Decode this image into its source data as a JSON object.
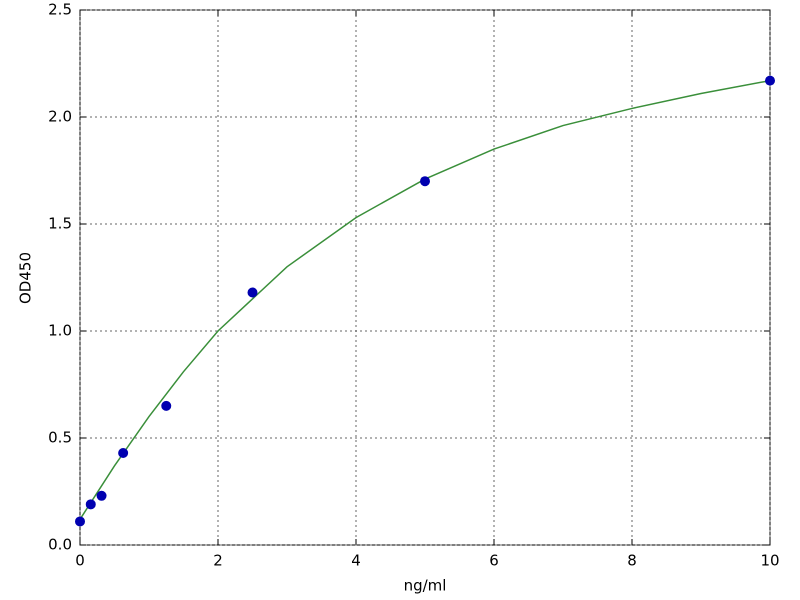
{
  "chart_data": {
    "type": "scatter",
    "xlabel": "ng/ml",
    "ylabel": "OD450",
    "xlim": [
      0,
      10
    ],
    "xticks": [
      0,
      2,
      4,
      6,
      8,
      10
    ],
    "ylim": [
      0,
      2.5
    ],
    "yticks": [
      {
        "value": 0,
        "label": "0.0"
      },
      0.5,
      {
        "value": 1,
        "label": "1.0"
      },
      1.5,
      {
        "value": 2,
        "label": "2.0"
      },
      2.5
    ],
    "grid": true,
    "series": [
      {
        "type": "line",
        "color": "#3a8f3a",
        "x": [
          0,
          0.5,
          1,
          1.5,
          2,
          3,
          4,
          5,
          6,
          7,
          8,
          9,
          10
        ],
        "values": [
          0.12,
          0.37,
          0.6,
          0.81,
          1.0,
          1.3,
          1.53,
          1.71,
          1.85,
          1.96,
          2.04,
          2.11,
          2.17
        ]
      },
      {
        "type": "scatter",
        "color": "#0000b0",
        "x": [
          0,
          0.156,
          0.3125,
          0.625,
          1.25,
          2.5,
          5,
          10
        ],
        "values": [
          0.11,
          0.19,
          0.23,
          0.43,
          0.65,
          1.18,
          1.7,
          2.17
        ]
      }
    ]
  }
}
